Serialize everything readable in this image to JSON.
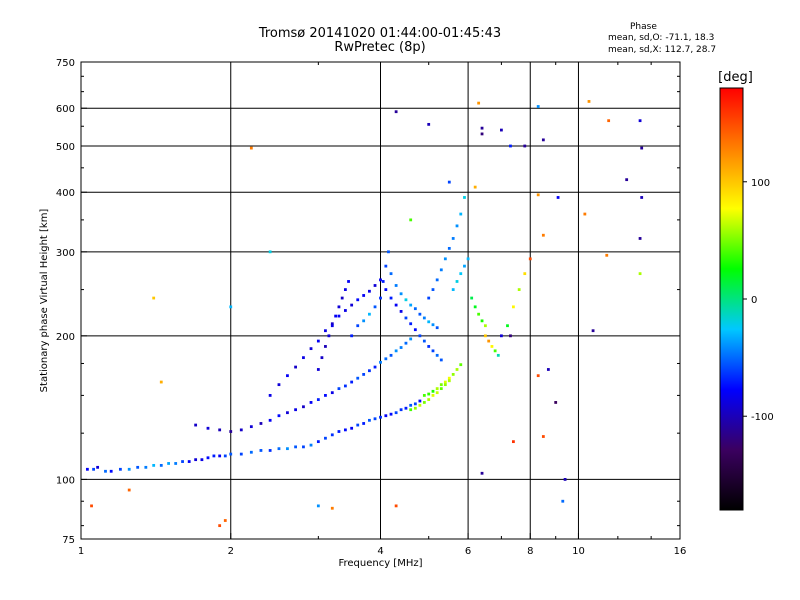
{
  "header": {
    "title": "Tromsø 20141020 01:44:00-01:45:43",
    "subtitle": "RwPretec (8p)",
    "stats_title": "Phase",
    "stats_o": "mean, sd,O: -71.1, 18.3",
    "stats_x": "mean, sd,X: 112.7, 28.7"
  },
  "colorbar": {
    "label": "[deg]",
    "ticks": [
      {
        "value": 100,
        "label": "100"
      },
      {
        "value": 0,
        "label": "0"
      },
      {
        "value": -100,
        "label": "-100"
      }
    ],
    "range": [
      -180,
      180
    ]
  },
  "chart_data": {
    "type": "scatter",
    "title": "Tromsø 20141020 01:44:00-01:45:43",
    "subtitle": "RwPretec (8p)",
    "xlabel": "Frequency [MHz]",
    "ylabel": "Stationary phase Virtual Height [km]",
    "xscale": "log",
    "yscale": "log",
    "xlim": [
      1,
      16
    ],
    "ylim": [
      75,
      750
    ],
    "grid": true,
    "xticks": [
      {
        "value": 1,
        "label": "1",
        "grid": false
      },
      {
        "value": 2,
        "label": "2",
        "grid": true
      },
      {
        "value": 4,
        "label": "4",
        "grid": true
      },
      {
        "value": 6,
        "label": "6",
        "grid": true
      },
      {
        "value": 8,
        "label": "8",
        "grid": true
      },
      {
        "value": 10,
        "label": "10",
        "grid": true
      },
      {
        "value": 16,
        "label": "16",
        "grid": false
      }
    ],
    "yticks": [
      {
        "value": 75,
        "label": "75",
        "grid": false
      },
      {
        "value": 100,
        "label": "100",
        "grid": true
      },
      {
        "value": 200,
        "label": "200",
        "grid": true
      },
      {
        "value": 300,
        "label": "300",
        "grid": true
      },
      {
        "value": 400,
        "label": "400",
        "grid": true
      },
      {
        "value": 500,
        "label": "500",
        "grid": true
      },
      {
        "value": 600,
        "label": "600",
        "grid": true
      },
      {
        "value": 750,
        "label": "750",
        "grid": false
      }
    ],
    "color_variable": "Phase [deg]",
    "points": [
      [
        1.03,
        105,
        -80
      ],
      [
        1.06,
        105,
        -60
      ],
      [
        1.08,
        106,
        -90
      ],
      [
        1.12,
        104,
        -50
      ],
      [
        1.15,
        104,
        -75
      ],
      [
        1.2,
        105,
        -60
      ],
      [
        1.25,
        105,
        -40
      ],
      [
        1.3,
        106,
        -55
      ],
      [
        1.35,
        106,
        -45
      ],
      [
        1.4,
        107,
        -30
      ],
      [
        1.45,
        107,
        -50
      ],
      [
        1.5,
        108,
        -35
      ],
      [
        1.55,
        108,
        -45
      ],
      [
        1.6,
        109,
        -60
      ],
      [
        1.65,
        109,
        -80
      ],
      [
        1.7,
        110,
        -90
      ],
      [
        1.75,
        110,
        -85
      ],
      [
        1.8,
        111,
        -75
      ],
      [
        1.85,
        112,
        -70
      ],
      [
        1.9,
        112,
        -80
      ],
      [
        1.95,
        112,
        -60
      ],
      [
        2.0,
        113,
        -55
      ],
      [
        2.1,
        113,
        -60
      ],
      [
        2.2,
        114,
        -50
      ],
      [
        2.3,
        115,
        -55
      ],
      [
        2.4,
        115,
        -65
      ],
      [
        2.5,
        116,
        -50
      ],
      [
        2.6,
        116,
        -40
      ],
      [
        2.7,
        117,
        -55
      ],
      [
        2.8,
        117,
        -60
      ],
      [
        2.9,
        118,
        -45
      ],
      [
        3.0,
        120,
        -70
      ],
      [
        3.1,
        122,
        -60
      ],
      [
        3.2,
        124,
        -65
      ],
      [
        3.3,
        126,
        -70
      ],
      [
        3.4,
        127,
        -75
      ],
      [
        3.5,
        128,
        -80
      ],
      [
        3.6,
        130,
        -60
      ],
      [
        3.7,
        131,
        -70
      ],
      [
        3.8,
        133,
        -55
      ],
      [
        3.9,
        134,
        -60
      ],
      [
        4.0,
        135,
        -65
      ],
      [
        4.1,
        136,
        -80
      ],
      [
        4.2,
        137,
        -75
      ],
      [
        4.3,
        138,
        -60
      ],
      [
        4.4,
        140,
        -65
      ],
      [
        4.5,
        141,
        -70
      ],
      [
        4.6,
        143,
        -55
      ],
      [
        4.7,
        144,
        -60
      ],
      [
        4.8,
        146,
        -75
      ],
      [
        1.7,
        130,
        -95
      ],
      [
        1.8,
        128,
        -90
      ],
      [
        1.9,
        127,
        -100
      ],
      [
        2.0,
        126,
        -110
      ],
      [
        2.1,
        127,
        -95
      ],
      [
        2.2,
        129,
        -90
      ],
      [
        2.3,
        131,
        -100
      ],
      [
        2.4,
        133,
        -80
      ],
      [
        2.5,
        136,
        -75
      ],
      [
        2.6,
        138,
        -90
      ],
      [
        2.7,
        140,
        -85
      ],
      [
        2.8,
        142,
        -95
      ],
      [
        2.9,
        145,
        -80
      ],
      [
        3.0,
        147,
        -70
      ],
      [
        3.1,
        150,
        -75
      ],
      [
        3.2,
        152,
        -85
      ],
      [
        3.3,
        155,
        -60
      ],
      [
        3.4,
        157,
        -65
      ],
      [
        3.5,
        160,
        -70
      ],
      [
        3.6,
        163,
        -55
      ],
      [
        3.7,
        166,
        -60
      ],
      [
        3.8,
        169,
        -65
      ],
      [
        3.9,
        172,
        -70
      ],
      [
        4.0,
        176,
        -45
      ],
      [
        4.1,
        179,
        -50
      ],
      [
        4.2,
        182,
        -55
      ],
      [
        4.3,
        186,
        -40
      ],
      [
        4.4,
        189,
        -45
      ],
      [
        4.5,
        193,
        -50
      ],
      [
        4.6,
        197,
        -40
      ],
      [
        2.4,
        150,
        -85
      ],
      [
        2.5,
        158,
        -90
      ],
      [
        2.6,
        165,
        -80
      ],
      [
        2.7,
        172,
        -95
      ],
      [
        2.8,
        180,
        -85
      ],
      [
        2.9,
        188,
        -90
      ],
      [
        3.0,
        195,
        -80
      ],
      [
        3.1,
        205,
        -85
      ],
      [
        3.2,
        212,
        -95
      ],
      [
        3.3,
        220,
        -80
      ],
      [
        3.4,
        226,
        -85
      ],
      [
        3.5,
        232,
        -90
      ],
      [
        3.6,
        238,
        -75
      ],
      [
        3.7,
        243,
        -80
      ],
      [
        3.8,
        248,
        -85
      ],
      [
        3.9,
        255,
        -90
      ],
      [
        4.0,
        262,
        -80
      ],
      [
        4.1,
        250,
        -75
      ],
      [
        4.2,
        240,
        -70
      ],
      [
        4.3,
        232,
        -80
      ],
      [
        4.4,
        225,
        -85
      ],
      [
        4.5,
        218,
        -60
      ],
      [
        4.6,
        212,
        -70
      ],
      [
        4.7,
        206,
        -75
      ],
      [
        4.8,
        200,
        -60
      ],
      [
        4.9,
        195,
        -55
      ],
      [
        5.0,
        190,
        -65
      ],
      [
        5.1,
        186,
        -60
      ],
      [
        5.2,
        182,
        -50
      ],
      [
        5.3,
        178,
        -55
      ],
      [
        3.0,
        170,
        -90
      ],
      [
        3.05,
        180,
        -95
      ],
      [
        3.1,
        190,
        -100
      ],
      [
        3.15,
        200,
        -90
      ],
      [
        3.2,
        210,
        -85
      ],
      [
        3.25,
        220,
        -80
      ],
      [
        3.3,
        230,
        -90
      ],
      [
        3.35,
        240,
        -95
      ],
      [
        3.4,
        250,
        -85
      ],
      [
        3.45,
        260,
        -80
      ],
      [
        3.5,
        200,
        -70
      ],
      [
        3.6,
        210,
        -60
      ],
      [
        3.7,
        215,
        -40
      ],
      [
        3.8,
        222,
        -30
      ],
      [
        3.9,
        230,
        -55
      ],
      [
        4.0,
        240,
        -65
      ],
      [
        4.05,
        260,
        -70
      ],
      [
        4.1,
        280,
        -60
      ],
      [
        4.15,
        300,
        -55
      ],
      [
        4.2,
        270,
        -50
      ],
      [
        4.3,
        255,
        -45
      ],
      [
        4.4,
        245,
        -40
      ],
      [
        4.5,
        238,
        -20
      ],
      [
        4.6,
        232,
        -35
      ],
      [
        4.7,
        228,
        -50
      ],
      [
        4.8,
        222,
        -55
      ],
      [
        4.9,
        218,
        -45
      ],
      [
        5.0,
        214,
        -30
      ],
      [
        5.1,
        211,
        -40
      ],
      [
        5.2,
        208,
        -55
      ],
      [
        4.9,
        150,
        40
      ],
      [
        5.0,
        151,
        35
      ],
      [
        5.1,
        153,
        30
      ],
      [
        5.2,
        155,
        60
      ],
      [
        5.3,
        158,
        50
      ],
      [
        5.4,
        160,
        70
      ],
      [
        5.5,
        163,
        75
      ],
      [
        5.6,
        166,
        55
      ],
      [
        5.7,
        170,
        60
      ],
      [
        5.8,
        174,
        45
      ],
      [
        4.6,
        140,
        40
      ],
      [
        4.7,
        141,
        55
      ],
      [
        4.8,
        143,
        65
      ],
      [
        4.9,
        145,
        50
      ],
      [
        5.0,
        147,
        60
      ],
      [
        5.1,
        150,
        70
      ],
      [
        5.2,
        152,
        65
      ],
      [
        5.3,
        155,
        45
      ],
      [
        5.4,
        158,
        55
      ],
      [
        5.5,
        161,
        60
      ],
      [
        5.0,
        240,
        -60
      ],
      [
        5.1,
        250,
        -55
      ],
      [
        5.2,
        262,
        -50
      ],
      [
        5.3,
        275,
        -45
      ],
      [
        5.4,
        290,
        -40
      ],
      [
        5.5,
        305,
        -50
      ],
      [
        5.6,
        320,
        -45
      ],
      [
        5.7,
        340,
        -40
      ],
      [
        5.8,
        360,
        -30
      ],
      [
        5.9,
        390,
        -20
      ],
      [
        5.6,
        250,
        -30
      ],
      [
        5.7,
        260,
        -20
      ],
      [
        5.8,
        270,
        -25
      ],
      [
        5.9,
        280,
        -35
      ],
      [
        6.0,
        290,
        -30
      ],
      [
        6.1,
        240,
        10
      ],
      [
        6.2,
        230,
        20
      ],
      [
        6.3,
        222,
        40
      ],
      [
        6.4,
        215,
        30
      ],
      [
        6.5,
        210,
        60
      ],
      [
        6.5,
        200,
        100
      ],
      [
        6.6,
        195,
        120
      ],
      [
        6.7,
        190,
        80
      ],
      [
        6.8,
        186,
        40
      ],
      [
        6.9,
        182,
        -10
      ],
      [
        7.0,
        200,
        -90
      ],
      [
        7.2,
        210,
        20
      ],
      [
        7.4,
        230,
        80
      ],
      [
        7.6,
        250,
        60
      ],
      [
        7.8,
        270,
        90
      ],
      [
        1.25,
        95,
        140
      ],
      [
        1.05,
        88,
        150
      ],
      [
        1.45,
        160,
        110
      ],
      [
        1.4,
        240,
        100
      ],
      [
        1.9,
        80,
        150
      ],
      [
        1.95,
        82,
        140
      ],
      [
        2.0,
        230,
        -30
      ],
      [
        2.4,
        300,
        -20
      ],
      [
        2.2,
        495,
        130
      ],
      [
        3.0,
        88,
        -40
      ],
      [
        3.2,
        87,
        130
      ],
      [
        4.3,
        88,
        150
      ],
      [
        4.3,
        590,
        -110
      ],
      [
        5.0,
        555,
        -100
      ],
      [
        6.3,
        615,
        120
      ],
      [
        6.4,
        545,
        -110
      ],
      [
        6.4,
        530,
        -120
      ],
      [
        7.0,
        540,
        -100
      ],
      [
        7.3,
        500,
        -70
      ],
      [
        7.8,
        500,
        -110
      ],
      [
        8.3,
        605,
        -40
      ],
      [
        8.5,
        515,
        -110
      ],
      [
        8.3,
        395,
        120
      ],
      [
        9.1,
        390,
        -80
      ],
      [
        10.3,
        360,
        130
      ],
      [
        10.5,
        620,
        120
      ],
      [
        10.7,
        205,
        -110
      ],
      [
        11.4,
        295,
        130
      ],
      [
        11.5,
        565,
        140
      ],
      [
        12.5,
        425,
        -110
      ],
      [
        13.3,
        565,
        -90
      ],
      [
        13.4,
        495,
        -110
      ],
      [
        13.4,
        390,
        -100
      ],
      [
        13.3,
        320,
        -110
      ],
      [
        13.3,
        270,
        60
      ],
      [
        8.7,
        170,
        -100
      ],
      [
        9.0,
        145,
        -130
      ],
      [
        8.3,
        165,
        150
      ],
      [
        8.5,
        123,
        150
      ],
      [
        7.4,
        120,
        160
      ],
      [
        6.4,
        103,
        -110
      ],
      [
        9.4,
        100,
        -100
      ],
      [
        9.3,
        90,
        -50
      ],
      [
        8.0,
        290,
        150
      ],
      [
        8.5,
        325,
        130
      ],
      [
        7.3,
        200,
        -120
      ],
      [
        5.5,
        420,
        -60
      ],
      [
        4.6,
        350,
        40
      ],
      [
        6.2,
        410,
        110
      ]
    ]
  },
  "colors": {
    "background": "#ffffff",
    "axes": "#000000",
    "colormap_stops": [
      "#000000",
      "#3b0060",
      "#0000ff",
      "#00c8ff",
      "#00ff00",
      "#ffff00",
      "#ff8000",
      "#ff0000"
    ]
  }
}
